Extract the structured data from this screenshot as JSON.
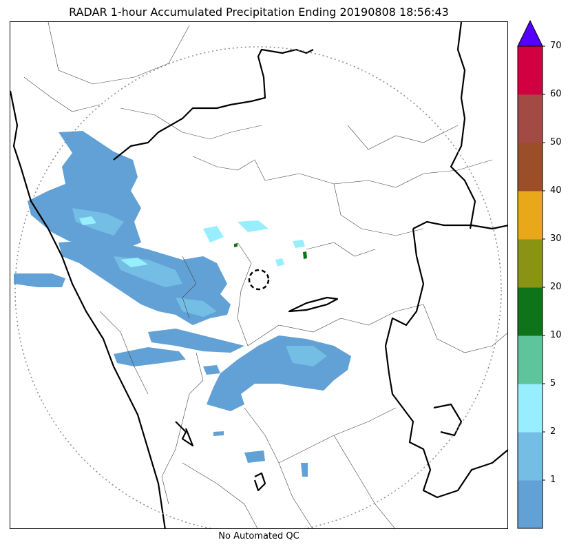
{
  "title": "RADAR 1-hour Accumulated Precipitation Ending 20190808 18:56:43",
  "footer": "No Automated QC",
  "colorbar": {
    "extend": "max",
    "extend_color": "#5500ff",
    "bins": [
      {
        "color": "#62a1d6"
      },
      {
        "color": "#74bde4"
      },
      {
        "color": "#96eefe"
      },
      {
        "color": "#5ec49b"
      },
      {
        "color": "#0f7419"
      },
      {
        "color": "#8b9314"
      },
      {
        "color": "#e8a819"
      },
      {
        "color": "#9b4e27"
      },
      {
        "color": "#a44a44"
      },
      {
        "color": "#d30041"
      }
    ],
    "tick_labels": [
      "1",
      "2",
      "5",
      "10",
      "20",
      "30",
      "40",
      "50",
      "60",
      "70"
    ]
  },
  "map": {
    "range_ring": "dotted",
    "radar_site_marker": "dashed-circle",
    "colors": {
      "coastline": "#000000",
      "state_border": "#000000",
      "district_border": "#444444",
      "ring": "#888888"
    }
  }
}
